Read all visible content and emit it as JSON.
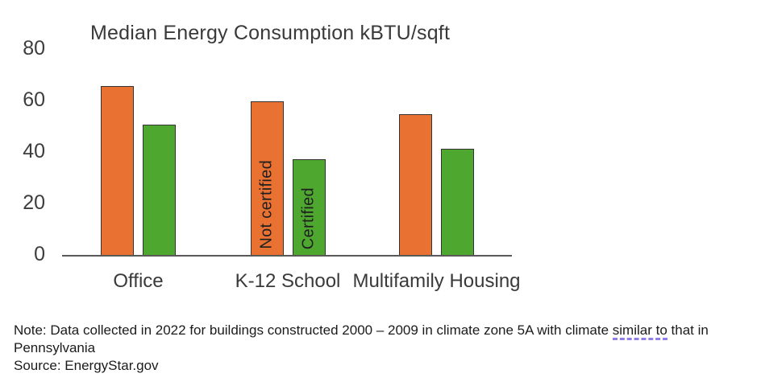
{
  "chart_data": {
    "type": "bar",
    "title": "Median Energy Consumption kBTU/sqft",
    "xlabel": "",
    "ylabel": "",
    "categories": [
      "Office",
      "K-12 School",
      "Multifamily Housing"
    ],
    "series": [
      {
        "name": "Not certified",
        "color": "#E97132",
        "values": [
          66,
          60,
          55
        ]
      },
      {
        "name": "Certified",
        "color": "#4EA72E",
        "values": [
          51,
          37.5,
          41.5
        ]
      }
    ],
    "ylim": [
      0,
      80
    ],
    "yticks": [
      0,
      20,
      40,
      60,
      80
    ],
    "grid": false,
    "legend_position": "labels-inside-bars",
    "series_label_category": "K-12 School"
  },
  "note": {
    "line1_before": "Note: Data collected in 2022 for buildings constructed 2000 – 2009 in climate zone 5A with climate ",
    "line1_underlined": "similar to",
    "line1_after": " that in",
    "line2": "Pennsylvania",
    "line3": "Source: EnergyStar.gov",
    "underline_color": "#8f7fe8"
  }
}
